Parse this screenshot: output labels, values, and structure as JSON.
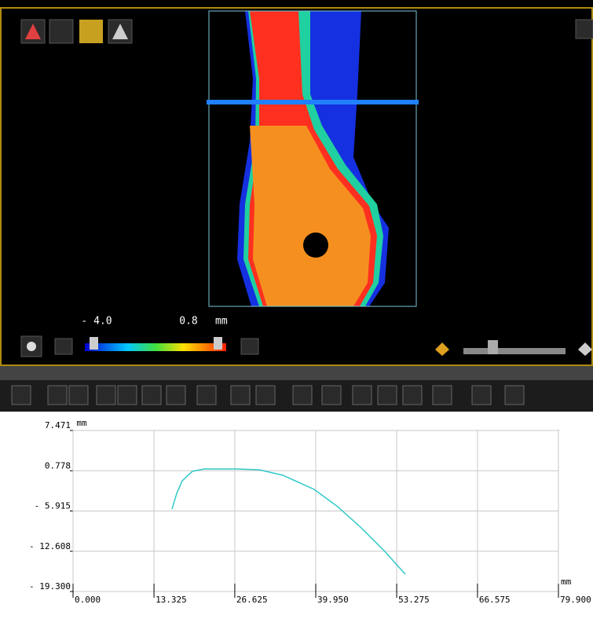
{
  "viewer": {
    "color_min": "- 4.0",
    "color_max": "0.8",
    "unit": "mm"
  },
  "chart_data": {
    "type": "line",
    "y_label": "mm",
    "x_label": "mm",
    "x": [
      16.29,
      17.07,
      17.97,
      19.65,
      21.59,
      26.76,
      30.64,
      34.52,
      39.69,
      43.57,
      47.45,
      51.33,
      54.69
    ],
    "series": [
      {
        "color": "#30c8c8",
        "values": [
          -5.59,
          -2.98,
          -0.89,
          0.68,
          1.07,
          1.07,
          0.94,
          0.03,
          -2.32,
          -5.2,
          -8.72,
          -12.64,
          -16.43
        ]
      }
    ],
    "xlim": [
      0,
      79.9
    ],
    "ylim": [
      -19.3,
      7.471
    ],
    "xticks": [
      {
        "value": 0,
        "label": "0.000"
      },
      13.325,
      26.625,
      {
        "value": 39.95,
        "label": "39.950"
      },
      53.275,
      66.575,
      {
        "value": 79.9,
        "label": "79.900"
      }
    ],
    "yticks": [
      7.471,
      0.778,
      {
        "value": -5.915,
        "label": "- 5.915"
      },
      {
        "value": -12.608,
        "label": "- 12.608"
      },
      {
        "value": -19.3,
        "label": "- 19.300"
      }
    ],
    "grid": true
  }
}
